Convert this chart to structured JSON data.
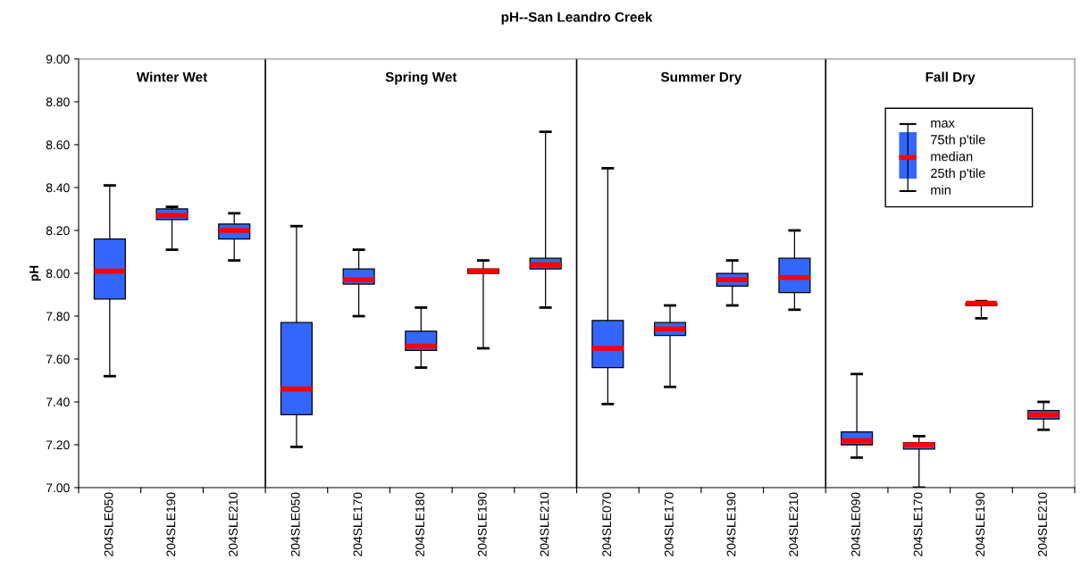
{
  "chart_data": {
    "type": "box",
    "title": "pH--San Leandro Creek",
    "ylabel": "pH",
    "categories": [
      "204SLE050",
      "204SLE190",
      "204SLE210",
      "204SLE050",
      "204SLE170",
      "204SLE180",
      "204SLE190",
      "204SLE210",
      "204SLE070",
      "204SLE170",
      "204SLE190",
      "204SLE210",
      "204SLE090",
      "204SLE170",
      "204SLE190",
      "204SLE210"
    ],
    "color": "#3366ff",
    "ylim": [
      7.0,
      9.0
    ],
    "yticks": [
      {
        "value": 7.0,
        "label": "7.00"
      },
      {
        "value": 7.2,
        "label": "7.20"
      },
      {
        "value": 7.4,
        "label": "7.40"
      },
      {
        "value": 7.6,
        "label": "7.60"
      },
      {
        "value": 7.8,
        "label": "7.80"
      },
      {
        "value": 8.0,
        "label": "8.00"
      },
      {
        "value": 8.2,
        "label": "8.20"
      },
      {
        "value": 8.4,
        "label": "8.40"
      },
      {
        "value": 8.6,
        "label": "8.60"
      },
      {
        "value": 8.8,
        "label": "8.80"
      },
      {
        "value": 9.0,
        "label": "9.00"
      }
    ],
    "annotations": [
      "Winter Wet",
      "Spring Wet",
      "Summer Dry",
      "Fall Dry",
      "max",
      "75th p'tile",
      "median",
      "25th p'tile",
      "min"
    ],
    "boxes": [
      {
        "low": 7.52,
        "q1": 7.88,
        "median": 8.01,
        "q3": 8.16,
        "high": 8.41
      },
      {
        "low": 8.11,
        "q1": 8.25,
        "median": 8.27,
        "q3": 8.3,
        "high": 8.31
      },
      {
        "low": 8.06,
        "q1": 8.16,
        "median": 8.2,
        "q3": 8.23,
        "high": 8.28
      },
      {
        "low": 7.19,
        "q1": 7.34,
        "median": 7.46,
        "q3": 7.77,
        "high": 8.22
      },
      {
        "low": 7.8,
        "q1": 7.95,
        "median": 7.97,
        "q3": 8.02,
        "high": 8.11
      },
      {
        "low": 7.56,
        "q1": 7.64,
        "median": 7.66,
        "q3": 7.73,
        "high": 7.84
      },
      {
        "low": 7.65,
        "q1": 8.0,
        "median": 8.01,
        "q3": 8.02,
        "high": 8.06
      },
      {
        "low": 7.84,
        "q1": 8.02,
        "median": 8.04,
        "q3": 8.07,
        "high": 8.66
      },
      {
        "low": 7.39,
        "q1": 7.56,
        "median": 7.65,
        "q3": 7.78,
        "high": 8.49
      },
      {
        "low": 7.47,
        "q1": 7.71,
        "median": 7.74,
        "q3": 7.77,
        "high": 7.85
      },
      {
        "low": 7.85,
        "q1": 7.94,
        "median": 7.97,
        "q3": 8.0,
        "high": 8.06
      },
      {
        "low": 7.83,
        "q1": 7.91,
        "median": 7.98,
        "q3": 8.07,
        "high": 8.2
      },
      {
        "low": 7.14,
        "q1": 7.2,
        "median": 7.22,
        "q3": 7.26,
        "high": 7.53
      },
      {
        "low": 7.0,
        "q1": 7.18,
        "median": 7.2,
        "q3": 7.21,
        "high": 7.24
      },
      {
        "low": 7.79,
        "q1": 7.85,
        "median": 7.86,
        "q3": 7.86,
        "high": 7.87
      },
      {
        "low": 7.27,
        "q1": 7.32,
        "median": 7.34,
        "q3": 7.36,
        "high": 7.4
      }
    ]
  }
}
